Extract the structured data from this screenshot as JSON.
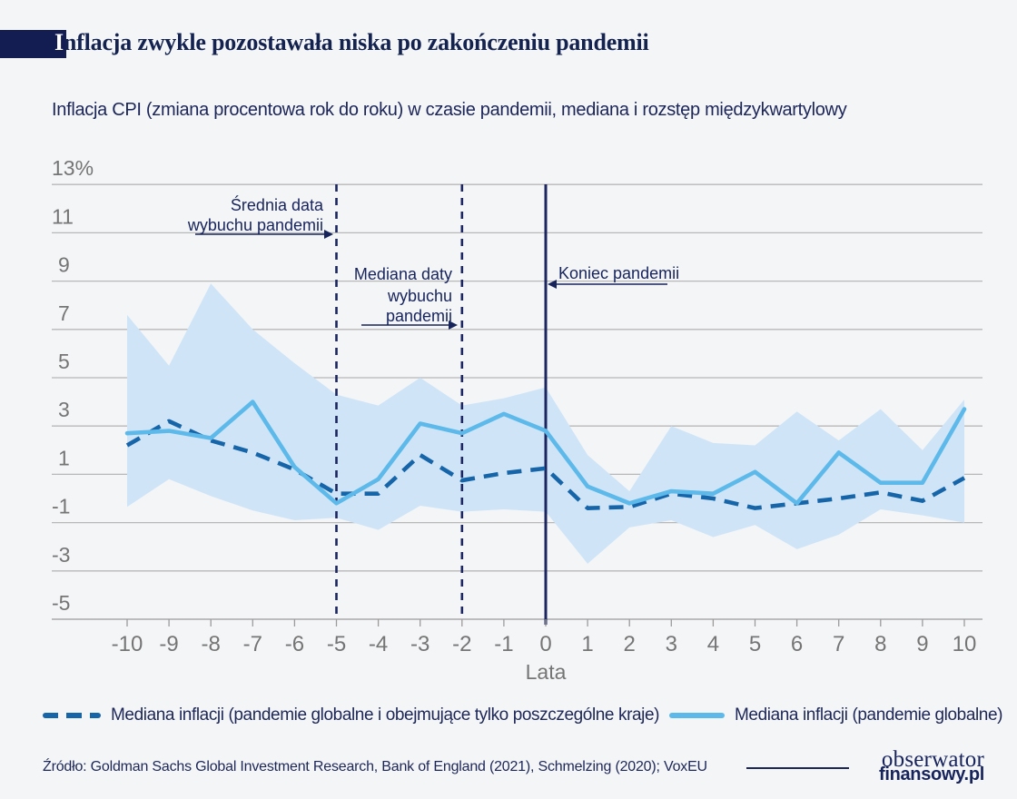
{
  "header": {
    "title_first_letter": "I",
    "title_rest": "nflacja zwykle pozostawała niska po zakończeniu pandemii",
    "subtitle": "Inflacja CPI (zmiana procentowa rok do roku) w czasie pandemii, mediana i rozstęp międzykwartylowy"
  },
  "chart_data": {
    "type": "line",
    "title": "Inflacja zwykle pozostawała niska po zakończeniu pandemii",
    "xlabel": "Lata",
    "xlim": [
      -10,
      10
    ],
    "ylim": [
      -5,
      13
    ],
    "grid": "horizontal",
    "y_gridlines": [
      13,
      11,
      9,
      7,
      5,
      3,
      1,
      -1,
      -3,
      -5
    ],
    "y_tick_labels": [
      "13%",
      "11",
      "9",
      "7",
      "5",
      "3",
      "1",
      "-1",
      "-3",
      "-5"
    ],
    "x_ticks": [
      -10,
      -9,
      -8,
      -7,
      -6,
      -5,
      -4,
      -3,
      -2,
      -1,
      0,
      1,
      2,
      3,
      4,
      5,
      6,
      7,
      8,
      9,
      10
    ],
    "x": [
      -10,
      -9,
      -8,
      -7,
      -6,
      -5,
      -4,
      -3,
      -2,
      -1,
      0,
      1,
      2,
      3,
      4,
      5,
      6,
      7,
      8,
      9,
      10
    ],
    "series": [
      {
        "name": "Mediana inflacji (pandemie globalne i obejmujące tylko poszczególne kraje)",
        "style": "dashed",
        "color": "#1765a9",
        "values": [
          2.2,
          3.2,
          2.4,
          1.9,
          1.2,
          0.2,
          0.2,
          1.8,
          0.75,
          1.05,
          1.25,
          -0.4,
          -0.35,
          0.2,
          0.0,
          -0.4,
          -0.2,
          0.0,
          0.25,
          -0.1,
          0.85
        ]
      },
      {
        "name": "Mediana inflacji (pandemie globalne)",
        "style": "solid",
        "color": "#5db9ea",
        "values": [
          2.7,
          2.8,
          2.5,
          4.0,
          1.3,
          -0.2,
          0.8,
          3.1,
          2.7,
          3.5,
          2.8,
          0.5,
          -0.2,
          0.3,
          0.2,
          1.1,
          -0.2,
          1.9,
          0.65,
          0.65,
          3.7
        ]
      }
    ],
    "band": {
      "name": "rozstęp międzykwartylowy",
      "color": "#cfe5f7",
      "low": [
        -0.35,
        0.8,
        0.1,
        -0.5,
        -0.9,
        -0.8,
        -1.3,
        -0.3,
        -0.55,
        -0.45,
        -0.55,
        -2.7,
        -1.2,
        -0.9,
        -1.6,
        -1.1,
        -2.1,
        -1.5,
        -0.45,
        -0.7,
        -1.0
      ],
      "high": [
        7.6,
        5.5,
        8.9,
        7.0,
        5.6,
        4.3,
        3.85,
        5.0,
        3.85,
        4.15,
        4.6,
        1.8,
        0.3,
        3.0,
        2.3,
        2.2,
        3.6,
        2.4,
        3.7,
        2.0,
        4.1
      ]
    },
    "events": [
      {
        "x": -5,
        "line": "dashed",
        "label": "Średnia data\nwybuchu pandemii"
      },
      {
        "x": -2,
        "line": "dashed",
        "label": "Mediana daty\nwybuchu\npandemii"
      },
      {
        "x": 0,
        "line": "solid",
        "label": "Koniec pandemii"
      }
    ],
    "colors": {
      "background": "#f4f5f7",
      "gridline": "#b8b8b8",
      "axis": "#9b9b9b",
      "tick_label": "#757575",
      "annotation": "#17245c",
      "event_line": "#1b2560"
    }
  },
  "legend": [
    {
      "label": "Mediana inflacji (pandemie globalne i obejmujące tylko poszczególne kraje)",
      "style": "dashed",
      "color": "#1765a9"
    },
    {
      "label": "Mediana inflacji (pandemie globalne)",
      "style": "solid",
      "color": "#5db9ea"
    }
  ],
  "footer": {
    "source": "Źródło: Goldman Sachs Global Investment Research, Bank of England (2021), Schmelzing (2020); VoxEU",
    "logo_line1": "obserwator",
    "logo_line2": "finansowy.pl"
  }
}
